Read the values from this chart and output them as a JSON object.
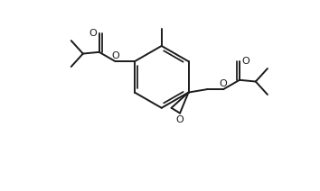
{
  "bg_color": "#ffffff",
  "line_color": "#1a1a1a",
  "line_width": 1.4,
  "figsize": [
    3.54,
    2.12
  ],
  "dpi": 100,
  "xlim": [
    0,
    10
  ],
  "ylim": [
    0,
    6
  ]
}
